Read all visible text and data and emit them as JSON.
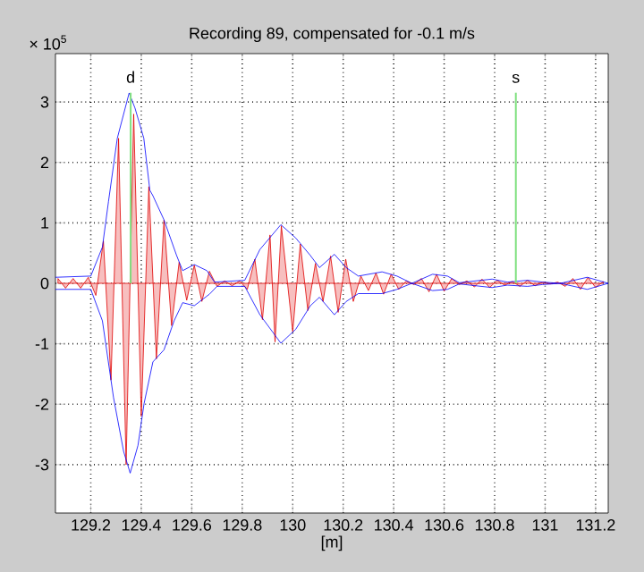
{
  "chart_data": {
    "type": "line",
    "title": "Recording 89, compensated for -0.1 m/s",
    "xlabel": "[m]",
    "xlim": [
      129.06,
      131.25
    ],
    "ylim": [
      -3.8,
      3.8
    ],
    "xticks": [
      129.2,
      129.4,
      129.6,
      129.8,
      130,
      130.2,
      130.4,
      130.6,
      130.8,
      131,
      131.2
    ],
    "yticks": [
      -3,
      -2,
      -1,
      0,
      1,
      2,
      3
    ],
    "grid": true,
    "line_style": "solid",
    "marker": "none",
    "annotations": [
      "× 10$^{5}$"
    ],
    "ref_lines": [
      {
        "axis": "x",
        "value": 129.358,
        "label": "d",
        "color": "#80e080"
      },
      {
        "axis": "x",
        "value": 130.884,
        "label": "s",
        "color": "#80e080"
      }
    ],
    "series": [
      {
        "type": "area",
        "color": "#e00000",
        "x": [
          129.07,
          129.1,
          129.13,
          129.16,
          129.19,
          129.22,
          129.25,
          129.28,
          129.31,
          129.34,
          129.37,
          129.4,
          129.43,
          129.46,
          129.49,
          129.52,
          129.55,
          129.58,
          129.61,
          129.64,
          129.67,
          129.7,
          129.73,
          129.76,
          129.79,
          129.82,
          129.85,
          129.88,
          129.91,
          129.93,
          129.955,
          130.0,
          130.03,
          130.06,
          130.09,
          130.12,
          130.15,
          130.18,
          130.21,
          130.24,
          130.27,
          130.3,
          130.33,
          130.36,
          130.39,
          130.42,
          130.45,
          130.48,
          130.51,
          130.54,
          130.57,
          130.6,
          130.63,
          130.66,
          130.69,
          130.72,
          130.75,
          130.78,
          130.81,
          130.84,
          130.87,
          130.9,
          130.93,
          130.96,
          130.99,
          131.02,
          131.05,
          131.08,
          131.11,
          131.14,
          131.17,
          131.2,
          131.23
        ],
        "values": [
          0.08,
          -0.08,
          0.08,
          -0.08,
          0.1,
          -0.2,
          0.7,
          -1.6,
          2.4,
          -3.0,
          2.8,
          -2.2,
          1.6,
          -1.25,
          1.05,
          -0.7,
          0.35,
          -0.28,
          0.3,
          -0.3,
          0.2,
          -0.05,
          0.04,
          -0.04,
          0.04,
          -0.1,
          0.4,
          -0.6,
          0.8,
          -0.97,
          0.95,
          -0.8,
          0.65,
          -0.45,
          0.33,
          -0.3,
          0.45,
          -0.48,
          0.4,
          -0.3,
          0.12,
          -0.12,
          0.17,
          -0.18,
          0.15,
          -0.1,
          0.04,
          -0.02,
          0.08,
          -0.14,
          0.15,
          -0.13,
          0.08,
          -0.02,
          0.04,
          -0.06,
          0.07,
          -0.07,
          0.05,
          -0.03,
          0.03,
          -0.05,
          0.05,
          -0.04,
          0.02,
          -0.01,
          0.02,
          -0.05,
          0.08,
          -0.1,
          0.1,
          -0.07,
          0.03
        ]
      },
      {
        "color": "#0000ff",
        "x": [
          129.06,
          129.2,
          129.246,
          129.27,
          129.305,
          129.352,
          129.375,
          129.41,
          129.434,
          129.446,
          129.49,
          129.54,
          129.564,
          129.61,
          129.66,
          129.69,
          129.81,
          129.87,
          129.953,
          130.012,
          130.07,
          130.106,
          130.165,
          130.212,
          130.26,
          130.354,
          130.413,
          130.472,
          130.554,
          130.613,
          130.66,
          130.79,
          130.85,
          130.93,
          130.99,
          131.06,
          131.167,
          131.25
        ],
        "values": [
          0.1,
          0.12,
          0.6,
          1.35,
          2.4,
          3.15,
          2.9,
          2.4,
          1.54,
          1.45,
          1.05,
          0.46,
          0.21,
          0.31,
          0.21,
          0.02,
          0.05,
          0.56,
          0.97,
          0.75,
          0.46,
          0.26,
          0.48,
          0.26,
          0.12,
          0.19,
          0.12,
          0.0,
          0.15,
          0.12,
          0.01,
          0.07,
          0.02,
          0.05,
          0.02,
          0.0,
          0.1,
          0.0
        ]
      },
      {
        "color": "#0000ff",
        "x": [
          129.06,
          129.2,
          129.246,
          129.29,
          129.33,
          129.356,
          129.387,
          129.411,
          129.446,
          129.49,
          129.53,
          129.564,
          129.61,
          129.67,
          129.7,
          129.81,
          129.87,
          129.953,
          130.012,
          130.07,
          130.106,
          130.165,
          130.212,
          130.26,
          130.354,
          130.413,
          130.472,
          130.554,
          130.613,
          130.66,
          130.79,
          130.85,
          130.93,
          130.99,
          131.06,
          131.167,
          131.25
        ],
        "values": [
          -0.1,
          -0.1,
          -0.62,
          -1.89,
          -2.78,
          -3.14,
          -2.68,
          -1.99,
          -1.3,
          -1.1,
          -0.62,
          -0.32,
          -0.37,
          -0.18,
          -0.05,
          -0.05,
          -0.52,
          -0.99,
          -0.76,
          -0.37,
          -0.23,
          -0.52,
          -0.3,
          -0.17,
          -0.17,
          -0.1,
          0.0,
          -0.12,
          -0.1,
          -0.01,
          -0.07,
          -0.03,
          -0.05,
          -0.02,
          0.0,
          -0.1,
          0.0
        ]
      }
    ]
  }
}
